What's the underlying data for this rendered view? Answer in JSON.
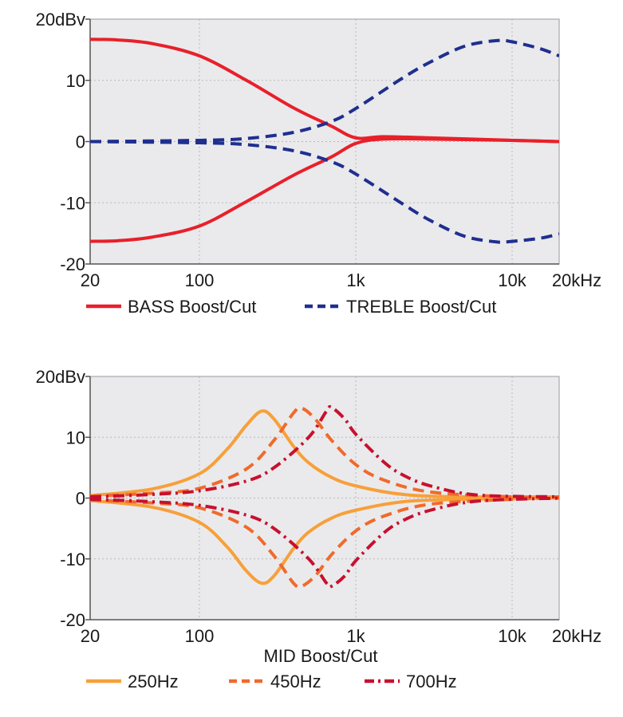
{
  "chart_data": [
    {
      "type": "line",
      "x_scale": "log",
      "xlim": [
        20,
        20000
      ],
      "ylim": [
        -20,
        20
      ],
      "grid": true,
      "legend_placement": "bottom",
      "x_ticks": [
        {
          "value": 20,
          "label": "20"
        },
        {
          "value": 100,
          "label": "100"
        },
        {
          "value": 1000,
          "label": "1k"
        },
        {
          "value": 10000,
          "label": "10k"
        },
        {
          "value": 20000,
          "label": "20kHz"
        }
      ],
      "y_ticks": [
        {
          "value": 20,
          "label": "20dBv"
        },
        {
          "value": 10,
          "label": "10"
        },
        {
          "value": 0,
          "label": "0"
        },
        {
          "value": -10,
          "label": "-10"
        },
        {
          "value": -20,
          "label": "-20"
        }
      ],
      "xlabel": "",
      "series": [
        {
          "name": "BASS Boost/Cut",
          "color": "#e8202a",
          "dash": "solid",
          "show_in_legend": true,
          "x": [
            20,
            30,
            50,
            100,
            200,
            400,
            700,
            1000,
            1500,
            3000,
            10000,
            20000
          ],
          "y": [
            16.7,
            16.6,
            16.0,
            14.0,
            10.0,
            5.5,
            2.5,
            0.6,
            0.8,
            0.6,
            0.2,
            0.0
          ]
        },
        {
          "name": "BASS Boost/Cut",
          "color": "#e8202a",
          "dash": "solid",
          "show_in_legend": false,
          "x": [
            20,
            30,
            50,
            100,
            200,
            400,
            700,
            1000,
            1500,
            3000,
            10000,
            20000
          ],
          "y": [
            -16.3,
            -16.2,
            -15.6,
            -13.8,
            -9.8,
            -5.5,
            -2.5,
            -0.3,
            0.4,
            0.4,
            0.2,
            0.0
          ]
        },
        {
          "name": "TREBLE Boost/Cut",
          "color": "#1f2f8f",
          "dash": "dashed",
          "show_in_legend": true,
          "x": [
            20,
            100,
            200,
            400,
            700,
            1000,
            2000,
            3000,
            5000,
            8000,
            10000,
            15000,
            20000
          ],
          "y": [
            0.0,
            0.2,
            0.5,
            1.5,
            3.3,
            5.4,
            10.4,
            13.0,
            15.6,
            16.5,
            16.3,
            15.2,
            14.0
          ]
        },
        {
          "name": "TREBLE Boost/Cut",
          "color": "#1f2f8f",
          "dash": "dashed",
          "show_in_legend": false,
          "x": [
            20,
            100,
            200,
            400,
            700,
            1000,
            2000,
            3000,
            5000,
            8000,
            10000,
            15000,
            20000
          ],
          "y": [
            0.0,
            -0.2,
            -0.5,
            -1.5,
            -3.3,
            -5.3,
            -10.2,
            -12.9,
            -15.5,
            -16.4,
            -16.3,
            -15.8,
            -15.1
          ]
        }
      ]
    },
    {
      "type": "line",
      "x_scale": "log",
      "xlim": [
        20,
        20000
      ],
      "ylim": [
        -20,
        20
      ],
      "grid": true,
      "legend_placement": "bottom",
      "x_ticks": [
        {
          "value": 20,
          "label": "20"
        },
        {
          "value": 100,
          "label": "100"
        },
        {
          "value": 1000,
          "label": "1k"
        },
        {
          "value": 10000,
          "label": "10k"
        },
        {
          "value": 20000,
          "label": "20kHz"
        }
      ],
      "y_ticks": [
        {
          "value": 20,
          "label": "20dBv"
        },
        {
          "value": 10,
          "label": "10"
        },
        {
          "value": 0,
          "label": "0"
        },
        {
          "value": -10,
          "label": "-10"
        },
        {
          "value": -20,
          "label": "-20"
        }
      ],
      "xlabel": "MID Boost/Cut",
      "series": [
        {
          "name": "250Hz",
          "color": "#f7a03a",
          "dash": "solid",
          "show_in_legend": true,
          "x": [
            20,
            50,
            100,
            150,
            200,
            250,
            300,
            400,
            500,
            700,
            1000,
            2000,
            5000,
            20000
          ],
          "y": [
            0.4,
            1.5,
            4.0,
            8.0,
            12.0,
            14.3,
            13.0,
            8.5,
            5.8,
            3.4,
            2.0,
            0.6,
            0.2,
            0.2
          ]
        },
        {
          "name": "250Hz",
          "color": "#f7a03a",
          "dash": "solid",
          "show_in_legend": false,
          "x": [
            20,
            50,
            100,
            150,
            200,
            250,
            300,
            400,
            500,
            700,
            1000,
            2000,
            5000,
            20000
          ],
          "y": [
            -0.4,
            -1.5,
            -4.0,
            -8.0,
            -12.0,
            -14.0,
            -12.8,
            -8.3,
            -5.6,
            -3.3,
            -2.0,
            -0.6,
            -0.2,
            0.0
          ]
        },
        {
          "name": "450Hz",
          "color": "#f06a2a",
          "dash": "dashed",
          "show_in_legend": true,
          "x": [
            20,
            50,
            100,
            200,
            300,
            400,
            450,
            550,
            700,
            1000,
            1500,
            3000,
            10000,
            20000
          ],
          "y": [
            0.3,
            0.8,
            1.6,
            4.8,
            9.5,
            14.0,
            14.8,
            13.0,
            9.5,
            5.5,
            3.0,
            1.0,
            0.2,
            0.2
          ]
        },
        {
          "name": "450Hz",
          "color": "#f06a2a",
          "dash": "dashed",
          "show_in_legend": false,
          "x": [
            20,
            50,
            100,
            200,
            300,
            400,
            450,
            550,
            700,
            1000,
            1500,
            3000,
            10000,
            20000
          ],
          "y": [
            -0.3,
            -0.8,
            -1.6,
            -4.8,
            -9.5,
            -14.0,
            -14.5,
            -12.8,
            -9.3,
            -5.4,
            -3.0,
            -1.0,
            -0.2,
            0.0
          ]
        },
        {
          "name": "700Hz",
          "color": "#c8102e",
          "dash": "dashdot",
          "show_in_legend": true,
          "x": [
            20,
            50,
            100,
            200,
            300,
            500,
            650,
            700,
            850,
            1000,
            1500,
            2000,
            3000,
            6000,
            20000
          ],
          "y": [
            0.2,
            0.6,
            1.2,
            2.8,
            5.0,
            10.0,
            14.3,
            14.9,
            13.0,
            10.5,
            6.0,
            3.8,
            2.0,
            0.5,
            0.2
          ]
        },
        {
          "name": "700Hz",
          "color": "#c8102e",
          "dash": "dashdot",
          "show_in_legend": false,
          "x": [
            20,
            50,
            100,
            200,
            300,
            500,
            650,
            700,
            850,
            1000,
            1500,
            2000,
            3000,
            6000,
            20000
          ],
          "y": [
            -0.2,
            -0.6,
            -1.2,
            -2.8,
            -5.0,
            -10.0,
            -14.0,
            -14.5,
            -12.8,
            -10.3,
            -5.8,
            -3.7,
            -2.0,
            -0.5,
            0.0
          ]
        }
      ]
    }
  ]
}
